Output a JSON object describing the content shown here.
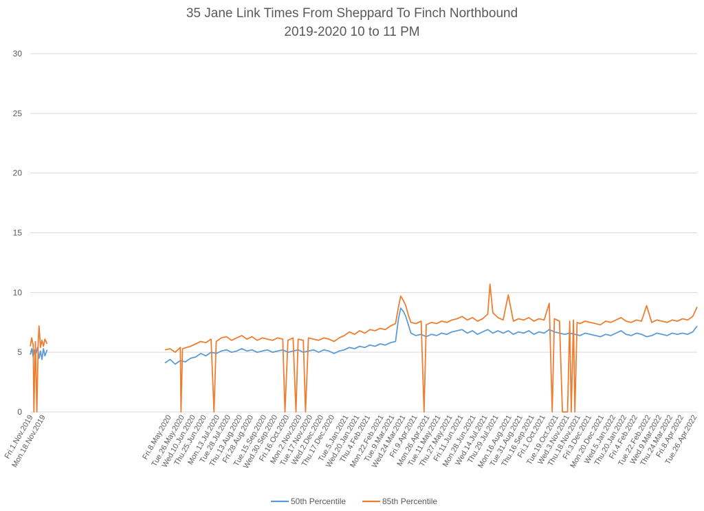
{
  "chart_data": {
    "type": "line",
    "title": "35 Jane Link Times From Sheppard To Finch Northbound",
    "subtitle": "2019-2020 10 to 11 PM",
    "xlabel": "",
    "ylabel": "",
    "ylim": [
      0,
      30
    ],
    "yticks": [
      0,
      5,
      10,
      15,
      20,
      25,
      30
    ],
    "grid": true,
    "legend_position": "bottom",
    "x_range": [
      "Fri.1.Nov.2019",
      "Sat.30.Apr.2022"
    ],
    "x_tick_labels": [
      "Fri.1.Nov.2019",
      "Mon.18.Nov.2019",
      "Fri.8.May.2020",
      "Tue.26.May.2020",
      "Wed.10.Jun.2020",
      "Thu.25.Jun.2020",
      "Mon.13.Jul.2020",
      "Tue.28.Jul.2020",
      "Thu.13.Aug.2020",
      "Fri.28.Aug.2020",
      "Tue.15.Sep.2020",
      "Wed.30.Sep.2020",
      "Fri.16.Oct.2020",
      "Mon.2.Nov.2020",
      "Tue.17.Nov.2020",
      "Wed.2.Dec.2020",
      "Thu.17.Dec.2020",
      "Tue.5.Jan.2021",
      "Wed.20.Jan.2021",
      "Thu.4.Feb.2021",
      "Mon.22.Feb.2021",
      "Tue.9.Mar.2021",
      "Wed.24.Mar.2021",
      "Fri.9.Apr.2021",
      "Mon.26.Apr.2021",
      "Tue.11.May.2021",
      "Thu.27.May.2021",
      "Fri.11.Jun.2021",
      "Mon.28.Jun.2021",
      "Wed.14.Jul.2021",
      "Thu.29.Jul.2021",
      "Mon.16.Aug.2021",
      "Tue.31.Aug.2021",
      "Thu.16.Sep.2021",
      "Fri.1.Oct.2021",
      "Tue.19.Oct.2021",
      "Wed.3.Nov.2021",
      "Thu.18.Nov.2021",
      "Fri.3.Dec.2021",
      "Mon.20.Dec.2021",
      "Wed.5.Jan.2022",
      "Thu.20.Jan.2022",
      "Fri.4.Feb.2022",
      "Tue.22.Feb.2022",
      "Wed.9.Mar.2022",
      "Thu.24.Mar.2022",
      "Fri.8.Apr.2022",
      "Tue.26.Apr.2022"
    ],
    "series": [
      {
        "name": "50th Percentile",
        "color": "#5B9BD5",
        "points": [
          [
            "2019-11-01",
            4.8
          ],
          [
            "2019-11-03",
            5.3
          ],
          [
            "2019-11-05",
            4.6
          ],
          [
            "2019-11-07",
            5.2
          ],
          [
            "2019-11-09",
            4.9
          ],
          [
            "2019-11-11",
            5.4
          ],
          [
            "2019-11-13",
            4.5
          ],
          [
            "2019-11-15",
            5.1
          ],
          [
            "2019-11-17",
            4.4
          ],
          [
            "2019-11-19",
            5.3
          ],
          [
            "2019-11-21",
            4.7
          ],
          [
            "2019-11-24",
            5.2
          ],
          [
            "2020-05-03",
            4.1
          ],
          [
            "2020-05-10",
            4.4
          ],
          [
            "2020-05-17",
            4.0
          ],
          [
            "2020-05-24",
            4.3
          ],
          [
            "2020-05-31",
            4.2
          ],
          [
            "2020-06-07",
            4.5
          ],
          [
            "2020-06-14",
            4.6
          ],
          [
            "2020-06-21",
            4.9
          ],
          [
            "2020-06-28",
            4.7
          ],
          [
            "2020-07-05",
            5.0
          ],
          [
            "2020-07-12",
            4.9
          ],
          [
            "2020-07-19",
            5.1
          ],
          [
            "2020-07-26",
            5.2
          ],
          [
            "2020-08-02",
            5.0
          ],
          [
            "2020-08-09",
            5.1
          ],
          [
            "2020-08-16",
            5.3
          ],
          [
            "2020-08-23",
            5.1
          ],
          [
            "2020-08-30",
            5.2
          ],
          [
            "2020-09-06",
            5.0
          ],
          [
            "2020-09-13",
            5.1
          ],
          [
            "2020-09-20",
            5.2
          ],
          [
            "2020-09-27",
            5.0
          ],
          [
            "2020-10-04",
            5.1
          ],
          [
            "2020-10-11",
            5.2
          ],
          [
            "2020-10-18",
            5.0
          ],
          [
            "2020-10-25",
            5.1
          ],
          [
            "2020-11-01",
            5.2
          ],
          [
            "2020-11-08",
            5.0
          ],
          [
            "2020-11-15",
            5.1
          ],
          [
            "2020-11-22",
            5.2
          ],
          [
            "2020-11-29",
            5.0
          ],
          [
            "2020-12-06",
            5.2
          ],
          [
            "2020-12-13",
            5.1
          ],
          [
            "2020-12-20",
            4.9
          ],
          [
            "2020-12-27",
            5.1
          ],
          [
            "2021-01-03",
            5.2
          ],
          [
            "2021-01-10",
            5.4
          ],
          [
            "2021-01-17",
            5.3
          ],
          [
            "2021-01-24",
            5.5
          ],
          [
            "2021-01-31",
            5.4
          ],
          [
            "2021-02-07",
            5.6
          ],
          [
            "2021-02-14",
            5.5
          ],
          [
            "2021-02-21",
            5.7
          ],
          [
            "2021-02-28",
            5.6
          ],
          [
            "2021-03-07",
            5.8
          ],
          [
            "2021-03-14",
            5.9
          ],
          [
            "2021-03-18",
            7.8
          ],
          [
            "2021-03-21",
            8.7
          ],
          [
            "2021-03-25",
            8.4
          ],
          [
            "2021-03-28",
            8.0
          ],
          [
            "2021-04-01",
            7.2
          ],
          [
            "2021-04-04",
            6.6
          ],
          [
            "2021-04-11",
            6.4
          ],
          [
            "2021-04-18",
            6.5
          ],
          [
            "2021-04-25",
            6.3
          ],
          [
            "2021-05-02",
            6.5
          ],
          [
            "2021-05-09",
            6.4
          ],
          [
            "2021-05-16",
            6.6
          ],
          [
            "2021-05-23",
            6.5
          ],
          [
            "2021-05-30",
            6.7
          ],
          [
            "2021-06-06",
            6.8
          ],
          [
            "2021-06-13",
            6.9
          ],
          [
            "2021-06-20",
            6.6
          ],
          [
            "2021-06-27",
            6.8
          ],
          [
            "2021-07-04",
            6.5
          ],
          [
            "2021-07-11",
            6.7
          ],
          [
            "2021-07-18",
            6.9
          ],
          [
            "2021-07-25",
            6.6
          ],
          [
            "2021-08-01",
            6.8
          ],
          [
            "2021-08-08",
            6.6
          ],
          [
            "2021-08-15",
            6.8
          ],
          [
            "2021-08-22",
            6.5
          ],
          [
            "2021-08-29",
            6.7
          ],
          [
            "2021-09-05",
            6.6
          ],
          [
            "2021-09-12",
            6.8
          ],
          [
            "2021-09-19",
            6.5
          ],
          [
            "2021-09-26",
            6.7
          ],
          [
            "2021-10-03",
            6.6
          ],
          [
            "2021-10-10",
            6.9
          ],
          [
            "2021-10-17",
            6.7
          ],
          [
            "2021-10-24",
            6.6
          ],
          [
            "2021-10-31",
            6.5
          ],
          [
            "2021-11-07",
            6.6
          ],
          [
            "2021-11-14",
            6.5
          ],
          [
            "2021-11-21",
            6.4
          ],
          [
            "2021-11-28",
            6.6
          ],
          [
            "2021-12-05",
            6.5
          ],
          [
            "2021-12-12",
            6.4
          ],
          [
            "2021-12-19",
            6.3
          ],
          [
            "2021-12-26",
            6.5
          ],
          [
            "2022-01-02",
            6.4
          ],
          [
            "2022-01-09",
            6.6
          ],
          [
            "2022-01-16",
            6.8
          ],
          [
            "2022-01-23",
            6.5
          ],
          [
            "2022-01-30",
            6.4
          ],
          [
            "2022-02-06",
            6.6
          ],
          [
            "2022-02-13",
            6.5
          ],
          [
            "2022-02-20",
            6.3
          ],
          [
            "2022-02-27",
            6.4
          ],
          [
            "2022-03-06",
            6.6
          ],
          [
            "2022-03-13",
            6.5
          ],
          [
            "2022-03-20",
            6.4
          ],
          [
            "2022-03-27",
            6.6
          ],
          [
            "2022-04-03",
            6.5
          ],
          [
            "2022-04-10",
            6.6
          ],
          [
            "2022-04-17",
            6.5
          ],
          [
            "2022-04-24",
            6.7
          ],
          [
            "2022-04-30",
            7.2
          ]
        ]
      },
      {
        "name": "85th Percentile",
        "color": "#ED7D31",
        "points": [
          [
            "2019-11-01",
            5.5
          ],
          [
            "2019-11-03",
            6.2
          ],
          [
            "2019-11-05",
            5.6
          ],
          [
            "2019-11-06",
            0.0
          ],
          [
            "2019-11-08",
            5.9
          ],
          [
            "2019-11-10",
            0.0
          ],
          [
            "2019-11-12",
            6.0
          ],
          [
            "2019-11-13",
            7.2
          ],
          [
            "2019-11-15",
            5.4
          ],
          [
            "2019-11-17",
            6.0
          ],
          [
            "2019-11-19",
            5.5
          ],
          [
            "2019-11-21",
            6.1
          ],
          [
            "2019-11-24",
            5.7
          ],
          [
            "2020-05-03",
            5.2
          ],
          [
            "2020-05-10",
            5.3
          ],
          [
            "2020-05-17",
            5.0
          ],
          [
            "2020-05-24",
            5.4
          ],
          [
            "2020-05-25",
            0.0
          ],
          [
            "2020-05-27",
            5.3
          ],
          [
            "2020-06-07",
            5.5
          ],
          [
            "2020-06-14",
            5.7
          ],
          [
            "2020-06-21",
            5.9
          ],
          [
            "2020-06-28",
            5.8
          ],
          [
            "2020-07-05",
            6.1
          ],
          [
            "2020-07-09",
            0.0
          ],
          [
            "2020-07-12",
            5.9
          ],
          [
            "2020-07-19",
            6.2
          ],
          [
            "2020-07-26",
            6.3
          ],
          [
            "2020-08-02",
            6.0
          ],
          [
            "2020-08-09",
            6.2
          ],
          [
            "2020-08-16",
            6.4
          ],
          [
            "2020-08-23",
            6.1
          ],
          [
            "2020-08-30",
            6.3
          ],
          [
            "2020-09-06",
            6.0
          ],
          [
            "2020-09-13",
            6.2
          ],
          [
            "2020-09-20",
            6.1
          ],
          [
            "2020-09-27",
            6.0
          ],
          [
            "2020-10-04",
            6.2
          ],
          [
            "2020-10-11",
            6.1
          ],
          [
            "2020-10-14",
            0.0
          ],
          [
            "2020-10-18",
            6.0
          ],
          [
            "2020-10-25",
            6.2
          ],
          [
            "2020-10-29",
            0.0
          ],
          [
            "2020-11-01",
            6.1
          ],
          [
            "2020-11-08",
            6.0
          ],
          [
            "2020-11-11",
            0.0
          ],
          [
            "2020-11-15",
            6.2
          ],
          [
            "2020-11-22",
            6.1
          ],
          [
            "2020-11-29",
            6.0
          ],
          [
            "2020-12-06",
            6.2
          ],
          [
            "2020-12-13",
            6.1
          ],
          [
            "2020-12-20",
            5.9
          ],
          [
            "2020-12-27",
            6.2
          ],
          [
            "2021-01-03",
            6.4
          ],
          [
            "2021-01-10",
            6.7
          ],
          [
            "2021-01-17",
            6.5
          ],
          [
            "2021-01-24",
            6.8
          ],
          [
            "2021-01-31",
            6.6
          ],
          [
            "2021-02-07",
            6.9
          ],
          [
            "2021-02-14",
            6.8
          ],
          [
            "2021-02-21",
            7.0
          ],
          [
            "2021-02-28",
            6.9
          ],
          [
            "2021-03-07",
            7.2
          ],
          [
            "2021-03-14",
            7.4
          ],
          [
            "2021-03-18",
            8.8
          ],
          [
            "2021-03-21",
            9.7
          ],
          [
            "2021-03-25",
            9.3
          ],
          [
            "2021-03-28",
            8.9
          ],
          [
            "2021-04-01",
            8.0
          ],
          [
            "2021-04-04",
            7.5
          ],
          [
            "2021-04-11",
            7.4
          ],
          [
            "2021-04-18",
            7.6
          ],
          [
            "2021-04-22",
            0.0
          ],
          [
            "2021-04-25",
            7.3
          ],
          [
            "2021-05-02",
            7.5
          ],
          [
            "2021-05-09",
            7.4
          ],
          [
            "2021-05-16",
            7.6
          ],
          [
            "2021-05-23",
            7.5
          ],
          [
            "2021-05-30",
            7.7
          ],
          [
            "2021-06-06",
            7.8
          ],
          [
            "2021-06-13",
            8.0
          ],
          [
            "2021-06-20",
            7.7
          ],
          [
            "2021-06-27",
            7.9
          ],
          [
            "2021-07-04",
            7.6
          ],
          [
            "2021-07-11",
            7.8
          ],
          [
            "2021-07-18",
            8.2
          ],
          [
            "2021-07-21",
            10.7
          ],
          [
            "2021-07-25",
            8.3
          ],
          [
            "2021-08-01",
            7.9
          ],
          [
            "2021-08-08",
            7.7
          ],
          [
            "2021-08-15",
            9.8
          ],
          [
            "2021-08-22",
            7.6
          ],
          [
            "2021-08-29",
            7.8
          ],
          [
            "2021-09-05",
            7.7
          ],
          [
            "2021-09-12",
            7.9
          ],
          [
            "2021-09-19",
            7.6
          ],
          [
            "2021-09-26",
            7.8
          ],
          [
            "2021-10-03",
            7.7
          ],
          [
            "2021-10-10",
            9.1
          ],
          [
            "2021-10-14",
            0.0
          ],
          [
            "2021-10-17",
            7.8
          ],
          [
            "2021-10-24",
            7.6
          ],
          [
            "2021-10-28",
            0.0
          ],
          [
            "2021-11-04",
            0.0
          ],
          [
            "2021-11-07",
            7.6
          ],
          [
            "2021-11-09",
            0.0
          ],
          [
            "2021-11-12",
            7.7
          ],
          [
            "2021-11-14",
            0.0
          ],
          [
            "2021-11-17",
            7.5
          ],
          [
            "2021-11-21",
            7.4
          ],
          [
            "2021-11-28",
            7.6
          ],
          [
            "2021-12-05",
            7.5
          ],
          [
            "2021-12-12",
            7.4
          ],
          [
            "2021-12-19",
            7.3
          ],
          [
            "2021-12-26",
            7.6
          ],
          [
            "2022-01-02",
            7.5
          ],
          [
            "2022-01-09",
            7.7
          ],
          [
            "2022-01-16",
            7.9
          ],
          [
            "2022-01-23",
            7.6
          ],
          [
            "2022-01-30",
            7.5
          ],
          [
            "2022-02-06",
            7.7
          ],
          [
            "2022-02-13",
            7.6
          ],
          [
            "2022-02-20",
            8.9
          ],
          [
            "2022-02-27",
            7.5
          ],
          [
            "2022-03-06",
            7.7
          ],
          [
            "2022-03-13",
            7.6
          ],
          [
            "2022-03-20",
            7.5
          ],
          [
            "2022-03-27",
            7.7
          ],
          [
            "2022-04-03",
            7.6
          ],
          [
            "2022-04-10",
            7.8
          ],
          [
            "2022-04-17",
            7.7
          ],
          [
            "2022-04-24",
            8.0
          ],
          [
            "2022-04-30",
            8.8
          ]
        ]
      }
    ]
  }
}
